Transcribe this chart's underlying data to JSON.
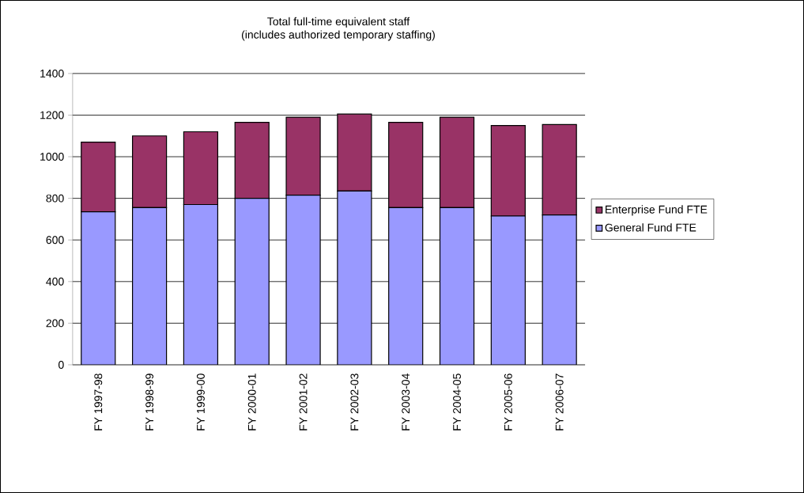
{
  "chart_data": {
    "type": "bar",
    "title": "Total full-time equivalent staff",
    "subtitle": "(includes authorized temporary staffing)",
    "categories": [
      "FY 1997-98",
      "FY 1998-99",
      "FY 1999-00",
      "FY 2000-01",
      "FY 2001-02",
      "FY 2002-03",
      "FY 2003-04",
      "FY 2004-05",
      "FY 2005-06",
      "FY 2006-07"
    ],
    "series": [
      {
        "name": "General Fund FTE",
        "color": "#9999ff",
        "values": [
          735,
          755,
          770,
          800,
          815,
          835,
          755,
          755,
          715,
          720
        ]
      },
      {
        "name": "Enterprise Fund FTE",
        "color": "#993366",
        "values": [
          335,
          345,
          350,
          365,
          375,
          370,
          410,
          435,
          435,
          435
        ]
      }
    ],
    "stacked": true,
    "ylim": [
      0,
      1400
    ],
    "yticks": [
      0,
      200,
      400,
      600,
      800,
      1000,
      1200,
      1400
    ],
    "grid": "y",
    "legend": "right"
  }
}
